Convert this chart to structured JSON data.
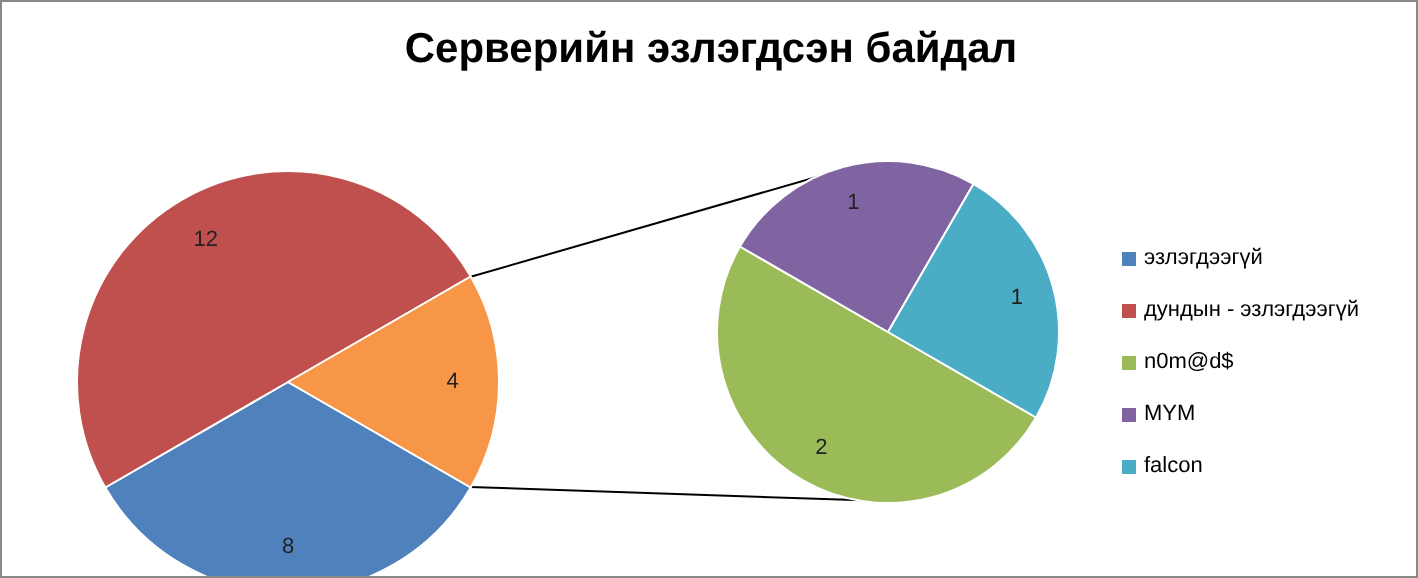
{
  "chart_data": [
    {
      "type": "pie",
      "title": "Серверийн эзлэгдсэн байдал",
      "categories": [
        "эзлэгдээгүй",
        "дундын - эзлэгдээгүй",
        null
      ],
      "values": [
        8,
        12,
        4
      ],
      "colors": [
        "#4f81bd",
        "#c0504d",
        "#f79646"
      ],
      "data_labels": true,
      "legend": "right"
    },
    {
      "type": "pie",
      "categories": [
        "n0m@d$",
        "MYM",
        "falcon"
      ],
      "values": [
        2,
        1,
        1
      ],
      "colors": [
        "#9bbb59",
        "#8064a2",
        "#4bacc6"
      ],
      "data_labels": true,
      "legend": "right"
    }
  ]
}
